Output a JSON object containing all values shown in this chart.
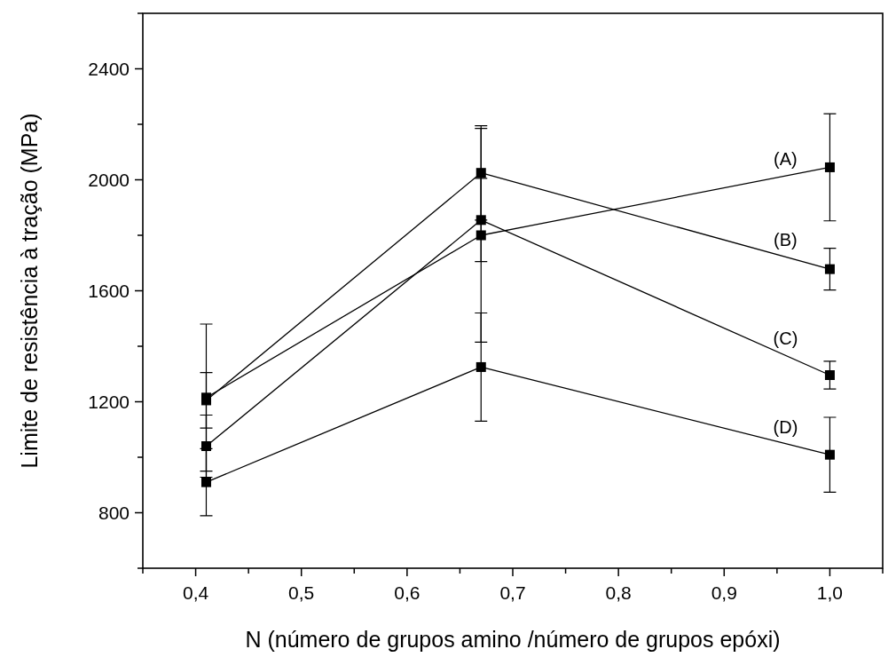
{
  "chart_data": {
    "type": "line",
    "xlabel": "N (número de grupos amino /número de grupos epóxi)",
    "ylabel": "Limite de resistência à tração (MPa)",
    "x": [
      0.41,
      0.67,
      1.0
    ],
    "series": [
      {
        "name": "(A)",
        "color": "#000000",
        "values": [
          1215,
          1800,
          2045
        ],
        "errors": [
          265,
          385,
          193
        ]
      },
      {
        "name": "(B)",
        "color": "#000000",
        "values": [
          1205,
          2025,
          1678
        ],
        "errors": [
          100,
          170,
          75
        ]
      },
      {
        "name": "(C)",
        "color": "#000000",
        "values": [
          1040,
          1855,
          1296
        ],
        "errors": [
          112,
          150,
          50
        ]
      },
      {
        "name": "(D)",
        "color": "#000000",
        "values": [
          910,
          1325,
          1009
        ],
        "errors": [
          121,
          195,
          135
        ]
      }
    ],
    "xlim": [
      0.35,
      1.05
    ],
    "ylim": [
      600,
      2600
    ],
    "xticks": [
      {
        "value": 0.35,
        "label": null
      },
      {
        "value": 0.4,
        "label": "0,4"
      },
      {
        "value": 0.45,
        "label": null
      },
      {
        "value": 0.5,
        "label": "0,5"
      },
      {
        "value": 0.55,
        "label": null
      },
      {
        "value": 0.6,
        "label": "0,6"
      },
      {
        "value": 0.65,
        "label": null
      },
      {
        "value": 0.7,
        "label": "0,7"
      },
      {
        "value": 0.75,
        "label": null
      },
      {
        "value": 0.8,
        "label": "0,8"
      },
      {
        "value": 0.85,
        "label": null
      },
      {
        "value": 0.9,
        "label": "0,9"
      },
      {
        "value": 0.95,
        "label": null
      },
      {
        "value": 1.0,
        "label": "1,0"
      },
      {
        "value": 1.05,
        "label": null
      }
    ],
    "yticks": [
      {
        "value": 600,
        "label": null
      },
      800,
      {
        "value": 1000,
        "label": null
      },
      1200,
      {
        "value": 1400,
        "label": null
      },
      1600,
      {
        "value": 1800,
        "label": null
      },
      2000,
      {
        "value": 2200,
        "label": null
      },
      2400,
      {
        "value": 2600,
        "label": null
      }
    ],
    "marker": "square",
    "line_style": "solid",
    "grid": false
  }
}
